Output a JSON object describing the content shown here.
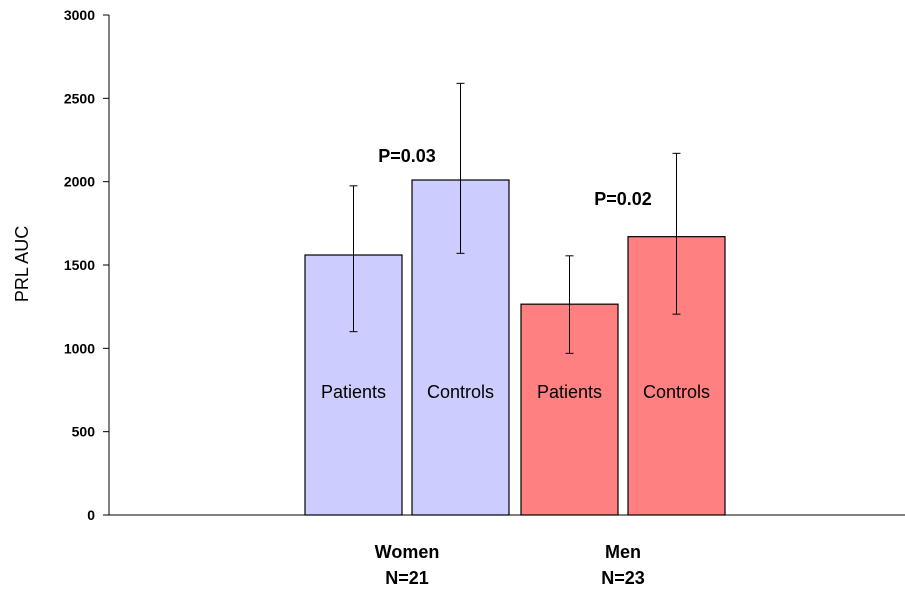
{
  "chart_data": {
    "type": "bar",
    "title": "",
    "xlabel": "",
    "ylabel": "PRL AUC",
    "ylim": [
      0,
      3000
    ],
    "yticks": [
      0,
      500,
      1000,
      1500,
      2000,
      2500,
      3000
    ],
    "grid": false,
    "groups": [
      {
        "label_line1": "Women",
        "label_line2": "N=21",
        "p_value": "P=0.03",
        "bars": [
          {
            "label": "Patients",
            "value": 1560,
            "error_low": 1100,
            "error_high": 1975,
            "color": "#ccccff"
          },
          {
            "label": "Controls",
            "value": 2010,
            "error_low": 1570,
            "error_high": 2590,
            "color": "#ccccff"
          }
        ]
      },
      {
        "label_line1": "Men",
        "label_line2": "N=23",
        "p_value": "P=0.02",
        "bars": [
          {
            "label": "Patients",
            "value": 1265,
            "error_low": 970,
            "error_high": 1555,
            "color": "#ff8080"
          },
          {
            "label": "Controls",
            "value": 1670,
            "error_low": 1205,
            "error_high": 2170,
            "color": "#ff8080"
          }
        ]
      }
    ]
  }
}
